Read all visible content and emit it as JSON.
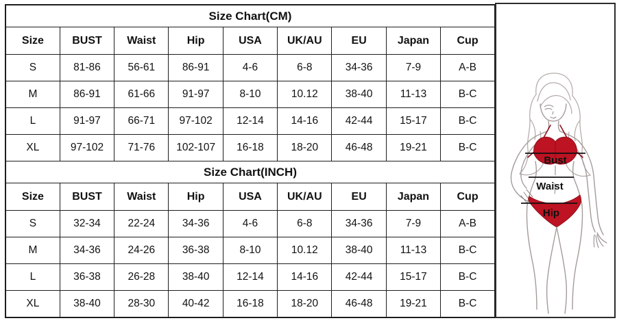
{
  "table": {
    "columns": [
      "Size",
      "BUST",
      "Waist",
      "Hip",
      "USA",
      "UK/AU",
      "EU",
      "Japan",
      "Cup"
    ],
    "sections": [
      {
        "title": "Size Chart(CM)",
        "rows": [
          [
            "S",
            "81-86",
            "56-61",
            "86-91",
            "4-6",
            "6-8",
            "34-36",
            "7-9",
            "A-B"
          ],
          [
            "M",
            "86-91",
            "61-66",
            "91-97",
            "8-10",
            "10.12",
            "38-40",
            "11-13",
            "B-C"
          ],
          [
            "L",
            "91-97",
            "66-71",
            "97-102",
            "12-14",
            "14-16",
            "42-44",
            "15-17",
            "B-C"
          ],
          [
            "XL",
            "97-102",
            "71-76",
            "102-107",
            "16-18",
            "18-20",
            "46-48",
            "19-21",
            "B-C"
          ]
        ]
      },
      {
        "title": "Size Chart(INCH)",
        "rows": [
          [
            "S",
            "32-34",
            "22-24",
            "34-36",
            "4-6",
            "6-8",
            "34-36",
            "7-9",
            "A-B"
          ],
          [
            "M",
            "34-36",
            "24-26",
            "36-38",
            "8-10",
            "10.12",
            "38-40",
            "11-13",
            "B-C"
          ],
          [
            "L",
            "36-38",
            "26-28",
            "38-40",
            "12-14",
            "14-16",
            "42-44",
            "15-17",
            "B-C"
          ],
          [
            "XL",
            "38-40",
            "28-30",
            "40-42",
            "16-18",
            "18-20",
            "46-48",
            "19-21",
            "B-C"
          ]
        ]
      }
    ]
  },
  "figure": {
    "labels": {
      "bust": "Bust",
      "waist": "Waist",
      "hip": "Hip"
    },
    "colors": {
      "bikini_red": "#bd1322",
      "outline_gray": "#a49b98",
      "label_black": "#101010"
    }
  }
}
